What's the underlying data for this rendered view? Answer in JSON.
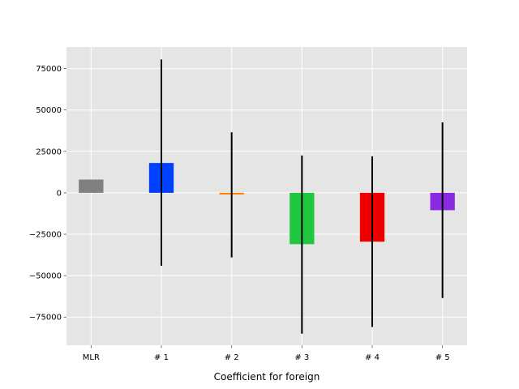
{
  "chart_data": {
    "type": "bar",
    "categories": [
      "MLR",
      "# 1",
      "# 2",
      "# 3",
      "# 4",
      "# 5"
    ],
    "values": [
      8000,
      18000,
      -1000,
      -31000,
      -29500,
      -10500
    ],
    "error_low": [
      8000,
      -44000,
      -39000,
      -85000,
      -81000,
      -63500
    ],
    "error_high": [
      8000,
      80500,
      36500,
      22500,
      22000,
      42500
    ],
    "colors": [
      "#808080",
      "#0040ff",
      "#ff8000",
      "#20c840",
      "#ee0000",
      "#8a2be2"
    ],
    "title": "",
    "xlabel": "Coefficient for foreign",
    "ylabel": "",
    "ylim": [
      -92000,
      88000
    ],
    "yticks": [
      75000,
      50000,
      25000,
      0,
      -25000,
      -50000,
      -75000
    ],
    "ytick_labels": [
      "75000",
      "50000",
      "25000",
      "0",
      "−25000",
      "−50000",
      "−75000"
    ],
    "grid": true,
    "background": "#e5e5e5",
    "error_color": "#000000"
  }
}
